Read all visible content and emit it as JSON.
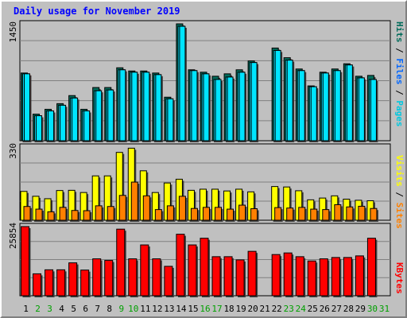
{
  "title": "Daily usage for November 2019",
  "colors": {
    "hits": "#006c5b",
    "files": "#00e4ff",
    "pages": "#00e4ff",
    "visits": "#ffff00",
    "sites": "#ff8000",
    "kbytes": "#ff0000",
    "weekend_label": "#00a000",
    "weekday_label": "#000000",
    "slash": "#000000"
  },
  "legend": {
    "top": {
      "pages": "Pages",
      "slash1": "/",
      "files": "Files",
      "slash2": "/",
      "hits": "Hits"
    },
    "middle": {
      "sites": "Sites",
      "slash": "/",
      "visits": "Visits"
    },
    "bottom": {
      "kbytes": "KBytes"
    }
  },
  "chart_data": [
    {
      "type": "bar",
      "panel": "hits-files-pages",
      "ymax_label": "1450",
      "ylim": [
        0,
        1450
      ],
      "categories": [
        "1",
        "2",
        "3",
        "4",
        "5",
        "6",
        "7",
        "8",
        "9",
        "10",
        "11",
        "12",
        "13",
        "14",
        "15",
        "16",
        "17",
        "18",
        "19",
        "20",
        "21",
        "22",
        "23",
        "24",
        "25",
        "26",
        "27",
        "28",
        "29",
        "30",
        "31"
      ],
      "series": [
        {
          "name": "Hits",
          "values": [
            840,
            330,
            390,
            460,
            560,
            390,
            660,
            660,
            905,
            865,
            865,
            840,
            540,
            1450,
            880,
            850,
            800,
            830,
            880,
            990,
            0,
            1150,
            1030,
            890,
            680,
            850,
            890,
            955,
            800,
            810,
            0
          ]
        },
        {
          "name": "Files",
          "values": [
            830,
            310,
            370,
            440,
            530,
            370,
            620,
            630,
            880,
            850,
            850,
            820,
            520,
            1420,
            870,
            830,
            760,
            790,
            850,
            970,
            0,
            1120,
            1000,
            870,
            670,
            840,
            870,
            940,
            780,
            760,
            0
          ]
        },
        {
          "name": "Pages",
          "values": [
            830,
            310,
            370,
            440,
            530,
            370,
            620,
            630,
            880,
            850,
            850,
            820,
            520,
            1420,
            870,
            830,
            760,
            790,
            850,
            970,
            0,
            1120,
            1000,
            870,
            670,
            840,
            870,
            940,
            780,
            760,
            0
          ]
        }
      ]
    },
    {
      "type": "bar",
      "panel": "visits-sites",
      "ymax_label": "330",
      "ylim": [
        0,
        330
      ],
      "categories": [
        "1",
        "2",
        "3",
        "4",
        "5",
        "6",
        "7",
        "8",
        "9",
        "10",
        "11",
        "12",
        "13",
        "14",
        "15",
        "16",
        "17",
        "18",
        "19",
        "20",
        "21",
        "22",
        "23",
        "24",
        "25",
        "26",
        "27",
        "28",
        "29",
        "30",
        "31"
      ],
      "series": [
        {
          "name": "Visits",
          "values": [
            130,
            108,
            97,
            134,
            135,
            125,
            200,
            200,
            306,
            325,
            223,
            125,
            168,
            185,
            135,
            140,
            140,
            132,
            140,
            128,
            0,
            152,
            150,
            133,
            92,
            100,
            110,
            95,
            90,
            88,
            0
          ]
        },
        {
          "name": "Sites",
          "values": [
            62,
            50,
            38,
            58,
            44,
            43,
            65,
            62,
            112,
            172,
            110,
            48,
            65,
            108,
            53,
            58,
            58,
            50,
            68,
            52,
            0,
            57,
            55,
            58,
            50,
            48,
            70,
            60,
            63,
            53,
            0
          ]
        }
      ]
    },
    {
      "type": "bar",
      "panel": "kbytes",
      "ymax_label": "25854",
      "ylim": [
        0,
        25854
      ],
      "categories": [
        "1",
        "2",
        "3",
        "4",
        "5",
        "6",
        "7",
        "8",
        "9",
        "10",
        "11",
        "12",
        "13",
        "14",
        "15",
        "16",
        "17",
        "18",
        "19",
        "20",
        "21",
        "22",
        "23",
        "24",
        "25",
        "26",
        "27",
        "28",
        "29",
        "30",
        "31"
      ],
      "series": [
        {
          "name": "KBytes",
          "values": [
            25854,
            8200,
            9700,
            9700,
            12300,
            9600,
            13800,
            13200,
            24900,
            13800,
            19000,
            13800,
            11000,
            23000,
            19000,
            21500,
            14600,
            14600,
            13400,
            16600,
            0,
            15400,
            16000,
            14600,
            13000,
            13800,
            14300,
            14300,
            14900,
            21500,
            0
          ]
        }
      ]
    }
  ]
}
